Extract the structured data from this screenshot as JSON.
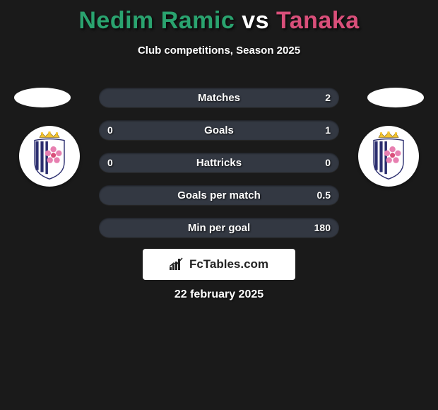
{
  "title": {
    "player1": "Nedim Ramic",
    "vs": " vs ",
    "player2": "Tanaka",
    "player1_color": "#2aa36f",
    "player2_color": "#d94f7a",
    "vs_color": "#ffffff"
  },
  "subtitle": "Club competitions, Season 2025",
  "bars": {
    "background_color": "#1a1a1a",
    "row_bg": "#333842",
    "text_color": "#ffffff",
    "rows": [
      {
        "label": "Matches",
        "left": "",
        "right": "2"
      },
      {
        "label": "Goals",
        "left": "0",
        "right": "1"
      },
      {
        "label": "Hattricks",
        "left": "0",
        "right": "0"
      },
      {
        "label": "Goals per match",
        "left": "",
        "right": "0.5"
      },
      {
        "label": "Min per goal",
        "left": "",
        "right": "180"
      }
    ]
  },
  "brand": {
    "text": "FcTables.com",
    "box_bg": "#ffffff",
    "text_color": "#222222"
  },
  "date": "22 february 2025",
  "crest": {
    "crown_color": "#f4c430",
    "shield_stripe1": "#2b2e6f",
    "shield_stripe2": "#ffffff",
    "flower_color": "#e77fb0",
    "flower_center": "#d94f7a"
  },
  "discs": {
    "color": "#ffffff"
  }
}
